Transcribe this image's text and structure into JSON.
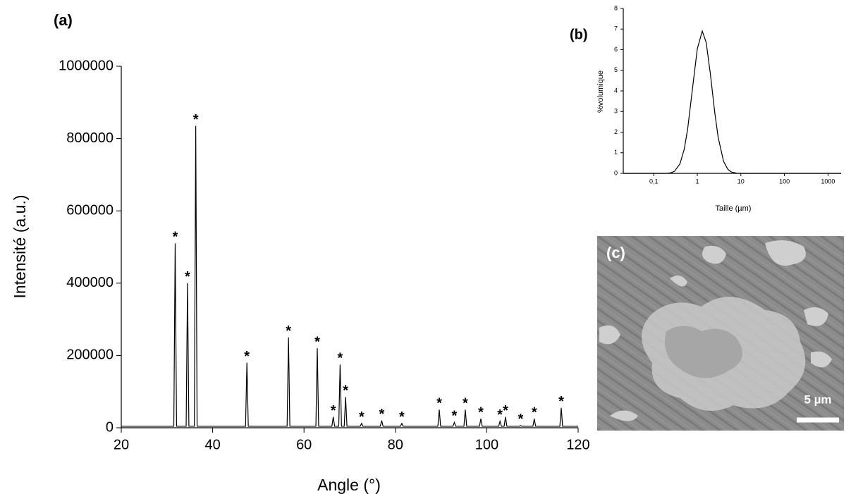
{
  "chart_data": [
    {
      "type": "line",
      "panel_label": "(a)",
      "x_label": "Angle (°)",
      "y_label": "Intensité (a.u.)",
      "xlim": [
        20,
        120
      ],
      "xticks": [
        20,
        40,
        60,
        80,
        100,
        120
      ],
      "ylim": [
        0,
        1000000
      ],
      "yticks": [
        0,
        200000,
        400000,
        600000,
        800000,
        1000000
      ],
      "log_x": false,
      "color": "#000000",
      "x": [
        20,
        31.5,
        31.8,
        32.1,
        34.2,
        34.5,
        34.8,
        36.0,
        36.3,
        36.6,
        47.2,
        47.5,
        47.8,
        56.3,
        56.6,
        56.9,
        62.6,
        62.9,
        63.2,
        66.1,
        66.4,
        66.7,
        67.6,
        67.9,
        68.2,
        68.8,
        69.1,
        69.4,
        72.3,
        72.6,
        72.9,
        76.7,
        77.0,
        77.3,
        81.1,
        81.4,
        81.7,
        89.3,
        89.6,
        89.9,
        92.6,
        92.9,
        93.2,
        95.0,
        95.3,
        95.6,
        98.4,
        98.7,
        99.0,
        102.6,
        102.9,
        103.2,
        103.8,
        104.1,
        104.4,
        107.1,
        107.4,
        107.7,
        110.1,
        110.4,
        110.7,
        116.0,
        116.3,
        116.6,
        120
      ],
      "values": [
        4000,
        4000,
        510000,
        4000,
        4000,
        400000,
        4000,
        4000,
        835000,
        4000,
        4000,
        180000,
        4000,
        4000,
        250000,
        4000,
        4000,
        220000,
        4000,
        4000,
        30000,
        4000,
        4000,
        175000,
        4000,
        4000,
        85000,
        4000,
        4000,
        12000,
        4000,
        4000,
        20000,
        4000,
        4000,
        12000,
        4000,
        4000,
        50000,
        4000,
        4000,
        15000,
        4000,
        4000,
        50000,
        4000,
        4000,
        25000,
        4000,
        4000,
        18000,
        4000,
        4000,
        30000,
        4000,
        4000,
        6000,
        4000,
        4000,
        25000,
        4000,
        4000,
        55000,
        4000,
        4000
      ],
      "annotations": [
        {
          "text": "*",
          "x": 31.8,
          "y": 510000
        },
        {
          "text": "*",
          "x": 34.5,
          "y": 400000
        },
        {
          "text": "*",
          "x": 36.3,
          "y": 835000
        },
        {
          "text": "*",
          "x": 47.5,
          "y": 180000
        },
        {
          "text": "*",
          "x": 56.6,
          "y": 250000
        },
        {
          "text": "*",
          "x": 62.9,
          "y": 220000
        },
        {
          "text": "*",
          "x": 66.4,
          "y": 30000
        },
        {
          "text": "*",
          "x": 67.9,
          "y": 175000
        },
        {
          "text": "*",
          "x": 69.1,
          "y": 85000
        },
        {
          "text": "*",
          "x": 72.6,
          "y": 12000
        },
        {
          "text": "*",
          "x": 77.0,
          "y": 20000
        },
        {
          "text": "*",
          "x": 81.4,
          "y": 12000
        },
        {
          "text": "*",
          "x": 89.6,
          "y": 50000
        },
        {
          "text": "*",
          "x": 92.9,
          "y": 15000
        },
        {
          "text": "*",
          "x": 95.3,
          "y": 50000
        },
        {
          "text": "*",
          "x": 98.7,
          "y": 25000
        },
        {
          "text": "*",
          "x": 102.9,
          "y": 18000
        },
        {
          "text": "*",
          "x": 104.1,
          "y": 30000
        },
        {
          "text": "*",
          "x": 107.4,
          "y": 6000
        },
        {
          "text": "*",
          "x": 110.4,
          "y": 25000
        },
        {
          "text": "*",
          "x": 116.3,
          "y": 55000
        }
      ]
    },
    {
      "type": "line",
      "panel_label": "(b)",
      "x_label": "Taille (µm)",
      "y_label": "%volumique",
      "xlim": [
        0.02,
        2000
      ],
      "log_x": true,
      "xticks": [
        {
          "value": 0.1,
          "label": "0,1"
        },
        1,
        10,
        100,
        1000
      ],
      "ylim": [
        0,
        8
      ],
      "yticks": [
        0,
        1,
        2,
        3,
        4,
        5,
        6,
        7,
        8
      ],
      "color": "#000000",
      "x": [
        0.02,
        0.2,
        0.25,
        0.3,
        0.4,
        0.5,
        0.6,
        0.8,
        1,
        1.3,
        1.6,
        2,
        2.5,
        3,
        4,
        5,
        6,
        8,
        10,
        2000
      ],
      "values": [
        0,
        0,
        0.03,
        0.1,
        0.46,
        1.16,
        2.14,
        4.35,
        6.04,
        6.9,
        6.35,
        4.81,
        3.0,
        1.77,
        0.59,
        0.2,
        0.07,
        0.01,
        0,
        0
      ]
    }
  ],
  "image": {
    "panel_label": "(c)",
    "scale_bar": "5 µm"
  }
}
